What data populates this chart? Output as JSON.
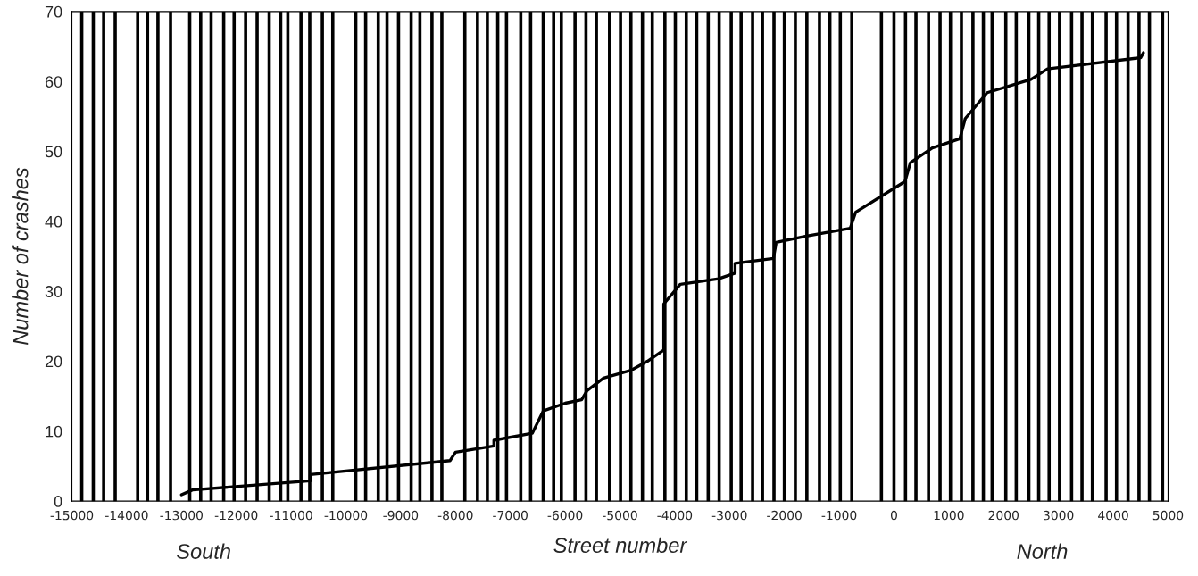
{
  "chart_data": {
    "type": "line",
    "xlabel": "Street number",
    "ylabel": "Number of crashes",
    "annotations": [
      "South",
      "North"
    ],
    "series": [
      {
        "color": "#000000",
        "x": [
          -13000,
          -12800,
          -10650,
          -10650,
          -8100,
          -8000,
          -7300,
          -7300,
          -6600,
          -6400,
          -6000,
          -5700,
          -5600,
          -5300,
          -4800,
          -4500,
          -4200,
          -4200,
          -3900,
          -3200,
          -2900,
          -2900,
          -2200,
          -2150,
          -1600,
          -800,
          -700,
          200,
          300,
          700,
          1200,
          1300,
          1700,
          2500,
          2800,
          4500,
          4550
        ],
        "values": [
          0.9,
          1.6,
          2.9,
          3.8,
          5.8,
          7,
          7.9,
          8.7,
          9.7,
          12.9,
          14,
          14.5,
          15.8,
          17.6,
          18.7,
          20,
          21.6,
          28.2,
          31,
          31.8,
          32.6,
          34,
          34.7,
          37,
          37.9,
          39,
          41.3,
          45.7,
          48.4,
          50.5,
          51.8,
          54.7,
          58.4,
          60.3,
          61.8,
          63.4,
          64.1
        ]
      }
    ],
    "xlim": [
      -15000,
      5000
    ],
    "xticks": [
      -15000,
      -14000,
      -13000,
      -12000,
      -11000,
      -10000,
      -9000,
      -8000,
      -7000,
      -6000,
      -5000,
      -4000,
      -3000,
      -2000,
      -1000,
      0,
      1000,
      2000,
      3000,
      4000,
      5000
    ],
    "ylim": [
      0,
      70
    ],
    "yticks": [
      0,
      10,
      20,
      30,
      40,
      50,
      60,
      70
    ],
    "grid": false,
    "legend": false,
    "marker": "none",
    "line_style": "solid",
    "ref_lines": [
      {
        "axis": "x",
        "value": -14820,
        "color": "#000000"
      },
      {
        "axis": "x",
        "value": -14610,
        "color": "#000000"
      },
      {
        "axis": "x",
        "value": -14420,
        "color": "#000000"
      },
      {
        "axis": "x",
        "value": -14210,
        "color": "#000000"
      },
      {
        "axis": "x",
        "value": -13800,
        "color": "#000000"
      },
      {
        "axis": "x",
        "value": -13620,
        "color": "#000000"
      },
      {
        "axis": "x",
        "value": -13430,
        "color": "#000000"
      },
      {
        "axis": "x",
        "value": -13200,
        "color": "#000000"
      },
      {
        "axis": "x",
        "value": -12850,
        "color": "#000000"
      },
      {
        "axis": "x",
        "value": -12650,
        "color": "#000000"
      },
      {
        "axis": "x",
        "value": -12460,
        "color": "#000000"
      },
      {
        "axis": "x",
        "value": -12230,
        "color": "#000000"
      },
      {
        "axis": "x",
        "value": -12040,
        "color": "#000000"
      },
      {
        "axis": "x",
        "value": -11830,
        "color": "#000000"
      },
      {
        "axis": "x",
        "value": -11620,
        "color": "#000000"
      },
      {
        "axis": "x",
        "value": -11400,
        "color": "#000000"
      },
      {
        "axis": "x",
        "value": -11190,
        "color": "#000000"
      },
      {
        "axis": "x",
        "value": -11060,
        "color": "#000000"
      },
      {
        "axis": "x",
        "value": -10820,
        "color": "#000000"
      },
      {
        "axis": "x",
        "value": -10660,
        "color": "#000000"
      },
      {
        "axis": "x",
        "value": -10430,
        "color": "#000000"
      },
      {
        "axis": "x",
        "value": -10240,
        "color": "#000000"
      },
      {
        "axis": "x",
        "value": -9820,
        "color": "#000000"
      },
      {
        "axis": "x",
        "value": -9640,
        "color": "#000000"
      },
      {
        "axis": "x",
        "value": -9410,
        "color": "#000000"
      },
      {
        "axis": "x",
        "value": -9250,
        "color": "#000000"
      },
      {
        "axis": "x",
        "value": -9040,
        "color": "#000000"
      },
      {
        "axis": "x",
        "value": -8810,
        "color": "#000000"
      },
      {
        "axis": "x",
        "value": -8650,
        "color": "#000000"
      },
      {
        "axis": "x",
        "value": -8430,
        "color": "#000000"
      },
      {
        "axis": "x",
        "value": -8250,
        "color": "#000000"
      },
      {
        "axis": "x",
        "value": -7830,
        "color": "#000000"
      },
      {
        "axis": "x",
        "value": -7600,
        "color": "#000000"
      },
      {
        "axis": "x",
        "value": -7420,
        "color": "#000000"
      },
      {
        "axis": "x",
        "value": -7230,
        "color": "#000000"
      },
      {
        "axis": "x",
        "value": -7070,
        "color": "#000000"
      },
      {
        "axis": "x",
        "value": -6810,
        "color": "#000000"
      },
      {
        "axis": "x",
        "value": -6630,
        "color": "#000000"
      },
      {
        "axis": "x",
        "value": -6400,
        "color": "#000000"
      },
      {
        "axis": "x",
        "value": -6210,
        "color": "#000000"
      },
      {
        "axis": "x",
        "value": -6070,
        "color": "#000000"
      },
      {
        "axis": "x",
        "value": -5820,
        "color": "#000000"
      },
      {
        "axis": "x",
        "value": -5620,
        "color": "#000000"
      },
      {
        "axis": "x",
        "value": -5430,
        "color": "#000000"
      },
      {
        "axis": "x",
        "value": -5190,
        "color": "#000000"
      },
      {
        "axis": "x",
        "value": -4990,
        "color": "#000000"
      },
      {
        "axis": "x",
        "value": -4800,
        "color": "#000000"
      },
      {
        "axis": "x",
        "value": -4590,
        "color": "#000000"
      },
      {
        "axis": "x",
        "value": -4410,
        "color": "#000000"
      },
      {
        "axis": "x",
        "value": -4180,
        "color": "#000000"
      },
      {
        "axis": "x",
        "value": -3990,
        "color": "#000000"
      },
      {
        "axis": "x",
        "value": -3790,
        "color": "#000000"
      },
      {
        "axis": "x",
        "value": -3600,
        "color": "#000000"
      },
      {
        "axis": "x",
        "value": -3390,
        "color": "#000000"
      },
      {
        "axis": "x",
        "value": -3190,
        "color": "#000000"
      },
      {
        "axis": "x",
        "value": -2970,
        "color": "#000000"
      },
      {
        "axis": "x",
        "value": -2790,
        "color": "#000000"
      },
      {
        "axis": "x",
        "value": -2580,
        "color": "#000000"
      },
      {
        "axis": "x",
        "value": -2400,
        "color": "#000000"
      },
      {
        "axis": "x",
        "value": -2190,
        "color": "#000000"
      },
      {
        "axis": "x",
        "value": -2000,
        "color": "#000000"
      },
      {
        "axis": "x",
        "value": -1800,
        "color": "#000000"
      },
      {
        "axis": "x",
        "value": -1590,
        "color": "#000000"
      },
      {
        "axis": "x",
        "value": -1360,
        "color": "#000000"
      },
      {
        "axis": "x",
        "value": -1170,
        "color": "#000000"
      },
      {
        "axis": "x",
        "value": -980,
        "color": "#000000"
      },
      {
        "axis": "x",
        "value": -770,
        "color": "#000000"
      },
      {
        "axis": "x",
        "value": -230,
        "color": "#000000"
      },
      {
        "axis": "x",
        "value": 0,
        "color": "#000000"
      },
      {
        "axis": "x",
        "value": 210,
        "color": "#000000"
      },
      {
        "axis": "x",
        "value": 400,
        "color": "#000000"
      },
      {
        "axis": "x",
        "value": 630,
        "color": "#000000"
      },
      {
        "axis": "x",
        "value": 840,
        "color": "#000000"
      },
      {
        "axis": "x",
        "value": 1030,
        "color": "#000000"
      },
      {
        "axis": "x",
        "value": 1230,
        "color": "#000000"
      },
      {
        "axis": "x",
        "value": 1440,
        "color": "#000000"
      },
      {
        "axis": "x",
        "value": 1630,
        "color": "#000000"
      },
      {
        "axis": "x",
        "value": 1790,
        "color": "#000000"
      },
      {
        "axis": "x",
        "value": 2040,
        "color": "#000000"
      },
      {
        "axis": "x",
        "value": 2230,
        "color": "#000000"
      },
      {
        "axis": "x",
        "value": 2460,
        "color": "#000000"
      },
      {
        "axis": "x",
        "value": 2640,
        "color": "#000000"
      },
      {
        "axis": "x",
        "value": 2830,
        "color": "#000000"
      },
      {
        "axis": "x",
        "value": 3020,
        "color": "#000000"
      },
      {
        "axis": "x",
        "value": 3240,
        "color": "#000000"
      },
      {
        "axis": "x",
        "value": 3430,
        "color": "#000000"
      },
      {
        "axis": "x",
        "value": 3620,
        "color": "#000000"
      },
      {
        "axis": "x",
        "value": 3870,
        "color": "#000000"
      },
      {
        "axis": "x",
        "value": 4060,
        "color": "#000000"
      },
      {
        "axis": "x",
        "value": 4270,
        "color": "#000000"
      },
      {
        "axis": "x",
        "value": 4470,
        "color": "#000000"
      },
      {
        "axis": "x",
        "value": 4660,
        "color": "#000000"
      },
      {
        "axis": "x",
        "value": 4900,
        "color": "#000000"
      }
    ]
  }
}
